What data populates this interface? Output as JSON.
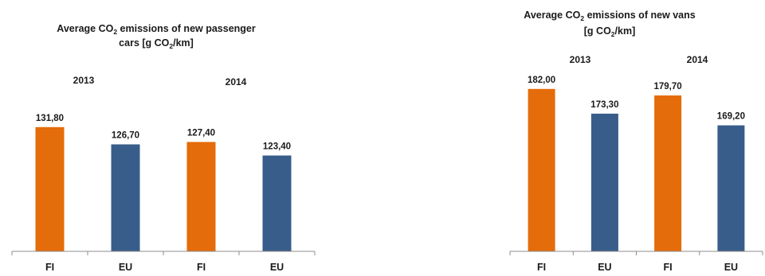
{
  "charts": [
    {
      "id": "cars",
      "title_parts": [
        "Average CO",
        "2",
        " emissions of new passenger"
      ],
      "title_line2_parts": [
        "cars [g CO",
        "2",
        "/km]"
      ],
      "chart_data": {
        "type": "bar",
        "categories": [
          "FI",
          "EU",
          "FI",
          "EU"
        ],
        "values": [
          131.8,
          126.7,
          127.4,
          123.4
        ],
        "value_labels": [
          "131,80",
          "126,70",
          "127,40",
          "123,40"
        ],
        "groups": [
          "2013",
          "2014"
        ],
        "colors": [
          "#E46C0A",
          "#385D8A",
          "#E46C0A",
          "#385D8A"
        ],
        "ylim": [
          95,
          140
        ],
        "grid": false,
        "legend": "none"
      }
    },
    {
      "id": "vans",
      "title_parts": [
        "Average CO",
        "2",
        " emissions of new vans"
      ],
      "title_line2_parts": [
        "[g CO",
        "2",
        "/km]"
      ],
      "chart_data": {
        "type": "bar",
        "categories": [
          "FI",
          "EU",
          "FI",
          "EU"
        ],
        "values": [
          182.0,
          173.3,
          179.7,
          169.2
        ],
        "value_labels": [
          "182,00",
          "173,30",
          "179,70",
          "169,20"
        ],
        "groups": [
          "2013",
          "2014"
        ],
        "colors": [
          "#E46C0A",
          "#385D8A",
          "#E46C0A",
          "#385D8A"
        ],
        "ylim": [
          125,
          185
        ],
        "grid": false,
        "legend": "none"
      }
    }
  ]
}
